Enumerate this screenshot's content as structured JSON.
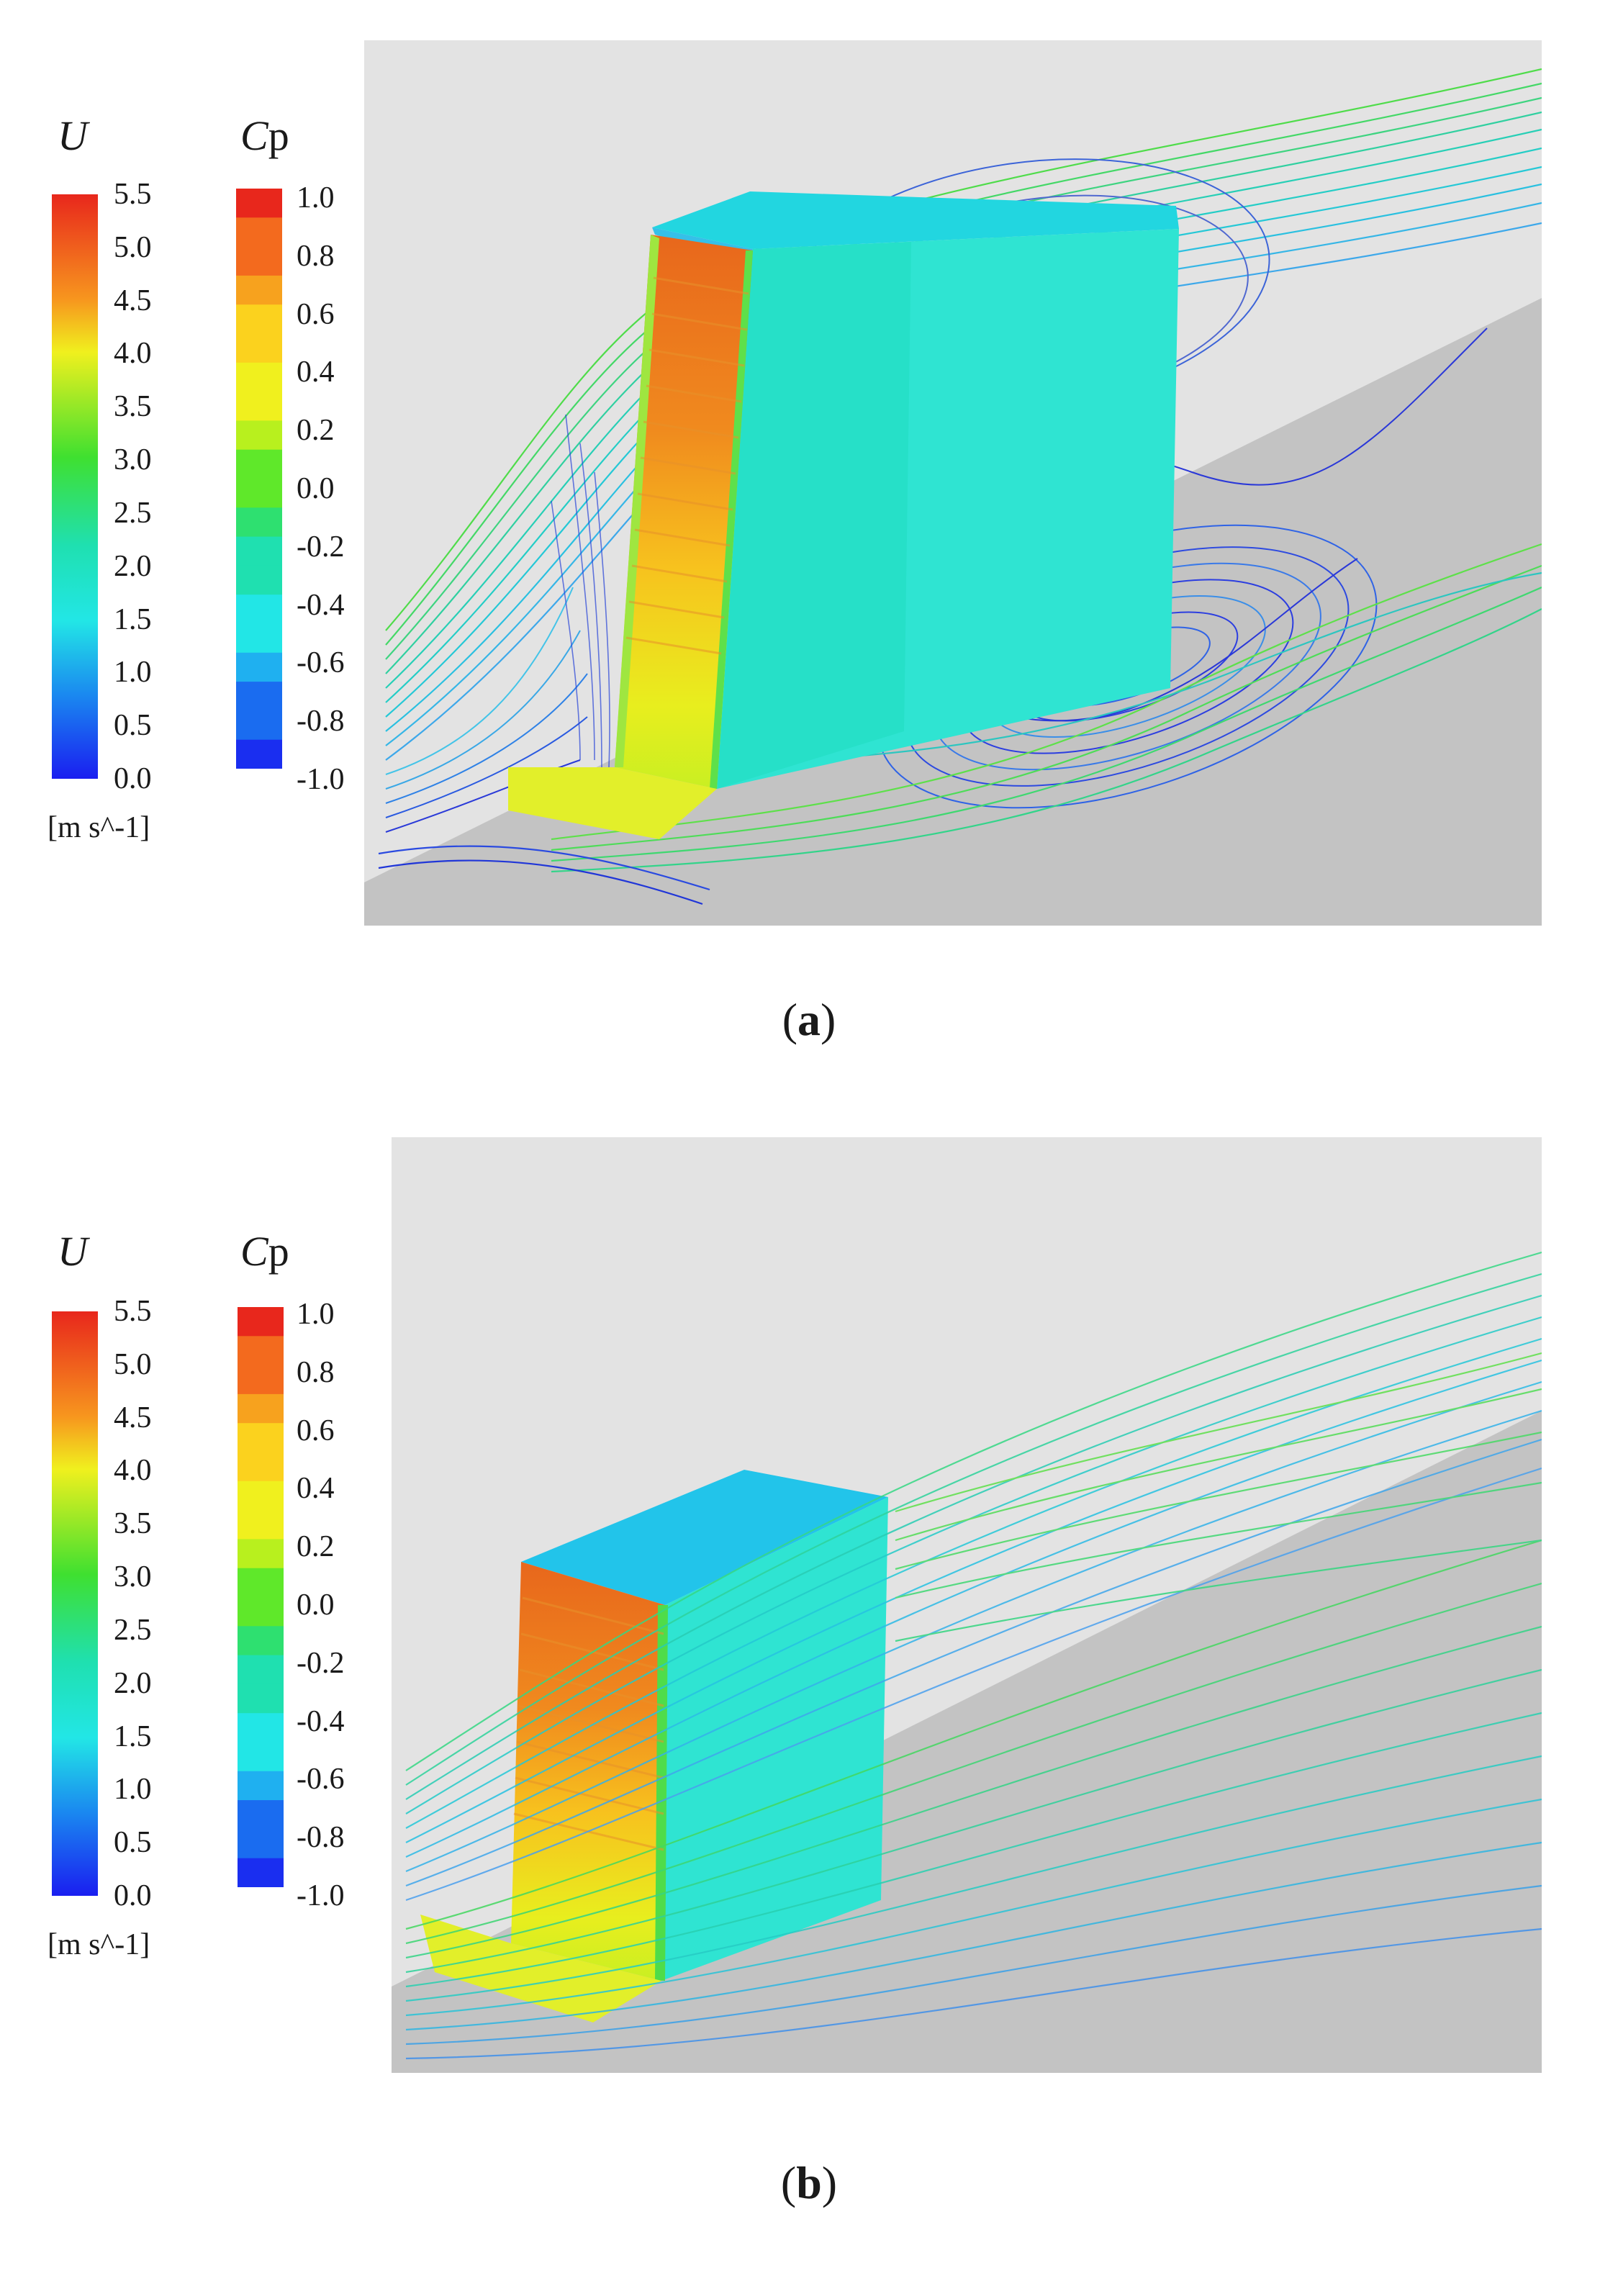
{
  "panels": [
    {
      "id": "a",
      "caption_open": "(",
      "caption_letter": "a",
      "caption_close": ")",
      "u_legend": {
        "symbol": "U",
        "ticks": [
          "5.5",
          "5.0",
          "4.5",
          "4.0",
          "3.5",
          "3.0",
          "2.5",
          "2.0",
          "1.5",
          "1.0",
          "0.5",
          "0.0"
        ],
        "unit": "[m s^-1]"
      },
      "cp_legend": {
        "symbol_italic": "C",
        "symbol_rest": "p",
        "ticks": [
          "1.0",
          "0.8",
          "0.6",
          "0.4",
          "0.2",
          "0.0",
          "-0.2",
          "-0.4",
          "-0.6",
          "-0.8",
          "-1.0"
        ]
      }
    },
    {
      "id": "b",
      "caption_open": "(",
      "caption_letter": "b",
      "caption_close": ")",
      "u_legend": {
        "symbol": "U",
        "ticks": [
          "5.5",
          "5.0",
          "4.5",
          "4.0",
          "3.5",
          "3.0",
          "2.5",
          "2.0",
          "1.5",
          "1.0",
          "0.5",
          "0.0"
        ],
        "unit": "[m s^-1]"
      },
      "cp_legend": {
        "symbol_italic": "C",
        "symbol_rest": "p",
        "ticks": [
          "1.0",
          "0.8",
          "0.6",
          "0.4",
          "0.2",
          "0.0",
          "-0.2",
          "-0.4",
          "-0.6",
          "-0.8",
          "-1.0"
        ]
      }
    }
  ],
  "colors": {
    "sky": "#e3e3e3",
    "ground": "#c3c3c3",
    "rainbow": [
      "#e8271c",
      "#f36a1e",
      "#f7a21e",
      "#fbd21e",
      "#f0f01e",
      "#b8f01e",
      "#5fe82a",
      "#2ee070",
      "#1fe0b0",
      "#22e6e6",
      "#1fb0f0",
      "#1a6cf0",
      "#1a2ef0"
    ]
  }
}
